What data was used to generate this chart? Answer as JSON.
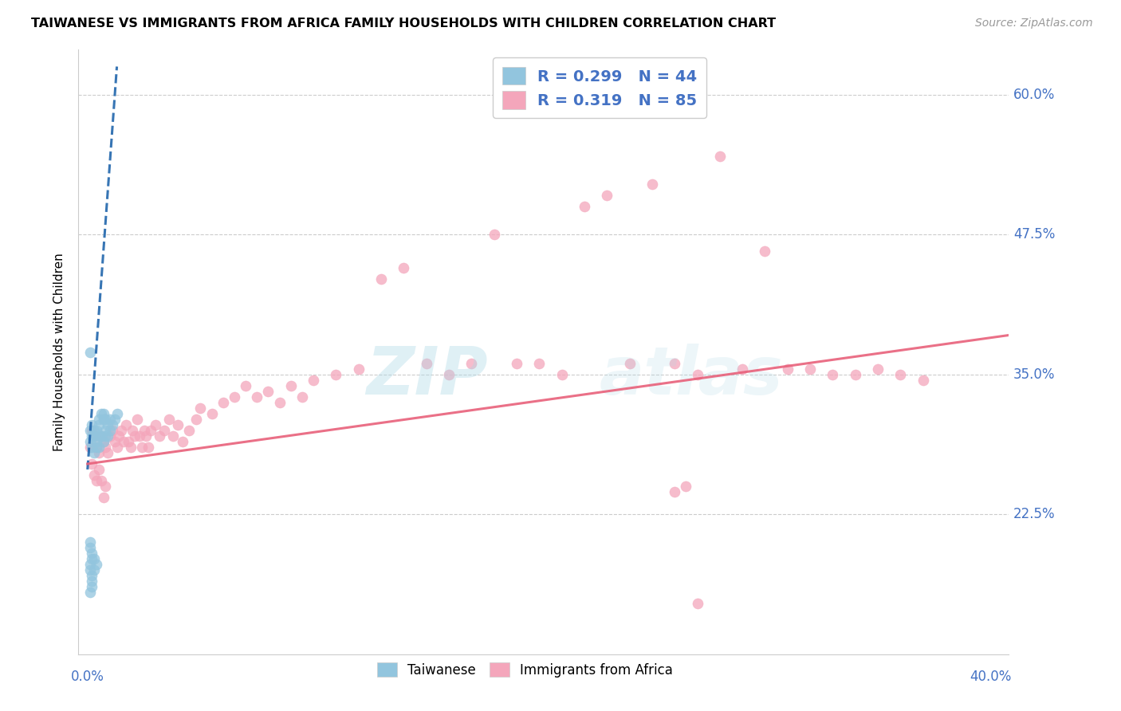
{
  "title": "TAIWANESE VS IMMIGRANTS FROM AFRICA FAMILY HOUSEHOLDS WITH CHILDREN CORRELATION CHART",
  "source": "Source: ZipAtlas.com",
  "ylabel": "Family Households with Children",
  "ytick_labels": [
    "22.5%",
    "35.0%",
    "47.5%",
    "60.0%"
  ],
  "ytick_values": [
    0.225,
    0.35,
    0.475,
    0.6
  ],
  "xlim": [
    -0.004,
    0.408
  ],
  "ylim": [
    0.1,
    0.64
  ],
  "legend_entry1": "R = 0.299   N = 44",
  "legend_entry2": "R = 0.319   N = 85",
  "blue_scatter_color": "#92c5de",
  "pink_scatter_color": "#f4a6bb",
  "blue_line_color": "#2166ac",
  "pink_line_color": "#e8607a",
  "label_color": "#4472c4",
  "watermark_color": "#add8e6",
  "tw_x": [
    0.001,
    0.001,
    0.002,
    0.002,
    0.002,
    0.003,
    0.003,
    0.003,
    0.004,
    0.004,
    0.004,
    0.005,
    0.005,
    0.005,
    0.005,
    0.006,
    0.006,
    0.007,
    0.007,
    0.007,
    0.008,
    0.008,
    0.008,
    0.009,
    0.009,
    0.01,
    0.01,
    0.011,
    0.012,
    0.013,
    0.001,
    0.001,
    0.002,
    0.002,
    0.003,
    0.004,
    0.001,
    0.002,
    0.003,
    0.001,
    0.001,
    0.002,
    0.001,
    0.002
  ],
  "tw_y": [
    0.29,
    0.3,
    0.295,
    0.285,
    0.305,
    0.28,
    0.295,
    0.3,
    0.29,
    0.285,
    0.3,
    0.31,
    0.295,
    0.285,
    0.305,
    0.315,
    0.295,
    0.31,
    0.29,
    0.315,
    0.3,
    0.31,
    0.295,
    0.305,
    0.295,
    0.31,
    0.3,
    0.305,
    0.31,
    0.315,
    0.175,
    0.18,
    0.17,
    0.185,
    0.175,
    0.18,
    0.195,
    0.19,
    0.185,
    0.2,
    0.155,
    0.16,
    0.37,
    0.165
  ],
  "af_x": [
    0.001,
    0.002,
    0.003,
    0.004,
    0.005,
    0.006,
    0.007,
    0.008,
    0.009,
    0.01,
    0.011,
    0.012,
    0.013,
    0.014,
    0.015,
    0.016,
    0.017,
    0.018,
    0.019,
    0.02,
    0.021,
    0.022,
    0.023,
    0.024,
    0.025,
    0.026,
    0.027,
    0.028,
    0.03,
    0.032,
    0.034,
    0.036,
    0.038,
    0.04,
    0.042,
    0.045,
    0.048,
    0.05,
    0.055,
    0.06,
    0.065,
    0.07,
    0.075,
    0.08,
    0.085,
    0.09,
    0.095,
    0.1,
    0.11,
    0.12,
    0.13,
    0.14,
    0.15,
    0.16,
    0.17,
    0.18,
    0.19,
    0.2,
    0.21,
    0.22,
    0.23,
    0.24,
    0.25,
    0.26,
    0.27,
    0.28,
    0.29,
    0.3,
    0.31,
    0.32,
    0.33,
    0.34,
    0.35,
    0.36,
    0.37,
    0.002,
    0.003,
    0.004,
    0.005,
    0.006,
    0.007,
    0.008,
    0.26,
    0.265,
    0.27
  ],
  "af_y": [
    0.285,
    0.3,
    0.295,
    0.285,
    0.28,
    0.295,
    0.29,
    0.285,
    0.28,
    0.295,
    0.3,
    0.29,
    0.285,
    0.295,
    0.3,
    0.29,
    0.305,
    0.29,
    0.285,
    0.3,
    0.295,
    0.31,
    0.295,
    0.285,
    0.3,
    0.295,
    0.285,
    0.3,
    0.305,
    0.295,
    0.3,
    0.31,
    0.295,
    0.305,
    0.29,
    0.3,
    0.31,
    0.32,
    0.315,
    0.325,
    0.33,
    0.34,
    0.33,
    0.335,
    0.325,
    0.34,
    0.33,
    0.345,
    0.35,
    0.355,
    0.435,
    0.445,
    0.36,
    0.35,
    0.36,
    0.475,
    0.36,
    0.36,
    0.35,
    0.5,
    0.51,
    0.36,
    0.52,
    0.36,
    0.35,
    0.545,
    0.355,
    0.46,
    0.355,
    0.355,
    0.35,
    0.35,
    0.355,
    0.35,
    0.345,
    0.27,
    0.26,
    0.255,
    0.265,
    0.255,
    0.24,
    0.25,
    0.245,
    0.25,
    0.145
  ]
}
